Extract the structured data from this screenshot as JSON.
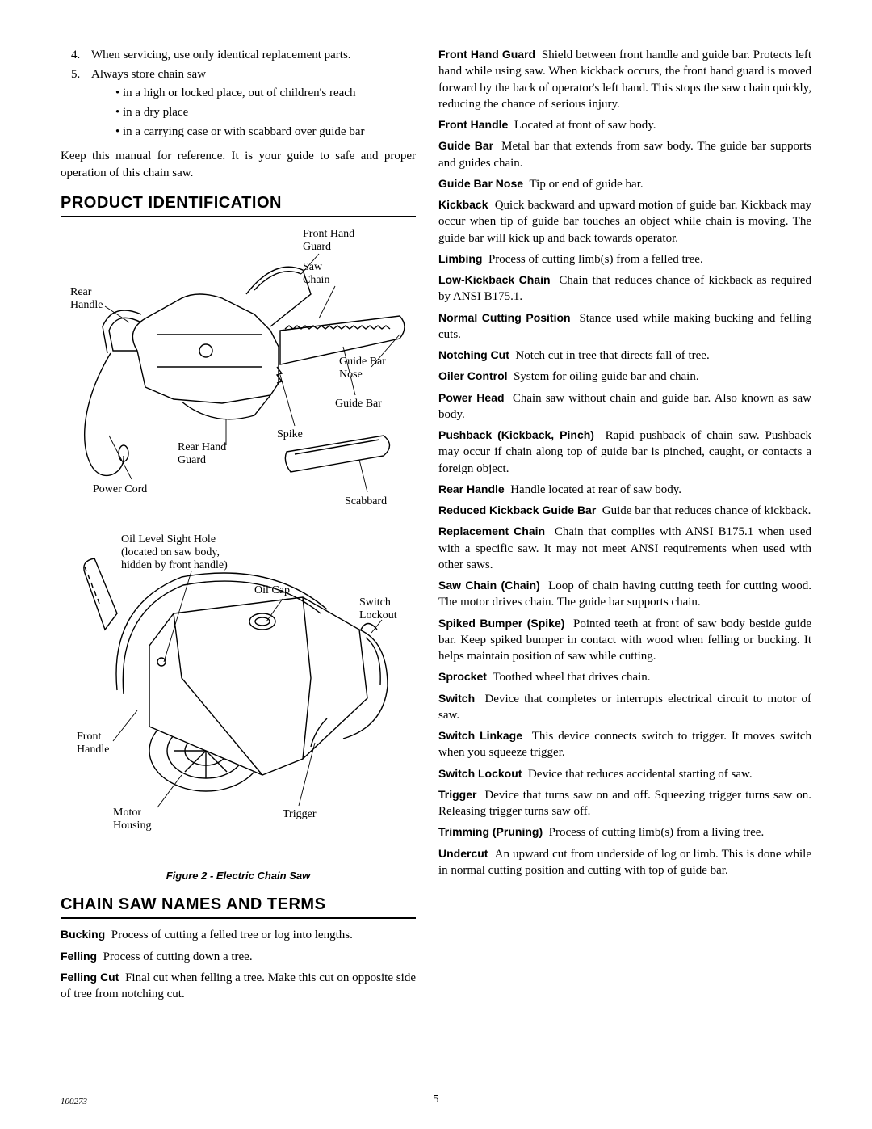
{
  "left": {
    "list4": "When servicing, use only identical replacement parts.",
    "list5": "Always store chain saw",
    "b1": "in a high or locked place, out of children's reach",
    "b2": "in a dry place",
    "b3": "in a carrying case or with scabbard over guide bar",
    "keep": "Keep this manual for reference. It is your guide to safe and proper operation of this chain saw.",
    "h_pi": "PRODUCT IDENTIFICATION",
    "fig_caption": "Figure 2 - Electric Chain Saw",
    "h_terms": "CHAIN SAW NAMES AND TERMS",
    "labels": {
      "rear_handle": "Rear\nHandle",
      "front_hand_guard": "Front Hand\nGuard",
      "saw_chain": "Saw\nChain",
      "guide_bar_nose": "Guide Bar\nNose",
      "guide_bar": "Guide Bar",
      "spike": "Spike",
      "rear_hand_guard": "Rear Hand\nGuard",
      "power_cord": "Power Cord",
      "scabbard": "Scabbard",
      "oil_sight": "Oil Level Sight Hole\n(located on saw body,\nhidden by front handle)",
      "oil_cap": "Oil Cap",
      "switch_lockout": "Switch\nLockout",
      "front_handle": "Front\nHandle",
      "motor_housing": "Motor\nHousing",
      "trigger": "Trigger"
    }
  },
  "terms": [
    {
      "t": "Bucking",
      "d": "Process of cutting a felled tree or log into lengths."
    },
    {
      "t": "Felling",
      "d": "Process of cutting down a tree."
    },
    {
      "t": "Felling Cut",
      "d": "Final cut when felling a tree. Make this cut on opposite side of tree from notching cut."
    },
    {
      "t": "Front Hand Guard",
      "d": "Shield between front handle and guide bar. Protects left hand while using saw. When kickback occurs, the front hand guard is moved forward by the back of operator's left hand. This stops the saw chain quickly, reducing the chance of serious injury."
    },
    {
      "t": "Front Handle",
      "d": "Located at front of saw body."
    },
    {
      "t": "Guide Bar",
      "d": "Metal bar that extends from saw body. The guide bar supports and guides chain."
    },
    {
      "t": "Guide Bar Nose",
      "d": "Tip or end of guide bar."
    },
    {
      "t": "Kickback",
      "d": "Quick backward and upward motion of guide bar. Kickback may occur when tip of guide bar touches an object while chain is moving. The guide bar will kick up and back towards operator."
    },
    {
      "t": "Limbing",
      "d": "Process of cutting limb(s) from a felled tree."
    },
    {
      "t": "Low-Kickback Chain",
      "d": "Chain that reduces chance of kickback as required by ANSI B175.1."
    },
    {
      "t": "Normal Cutting Position",
      "d": "Stance used while making bucking and felling cuts."
    },
    {
      "t": "Notching Cut",
      "d": "Notch cut in tree that directs fall of tree."
    },
    {
      "t": "Oiler Control",
      "d": "System for oiling guide bar and chain."
    },
    {
      "t": "Power Head",
      "d": "Chain saw without chain and guide bar. Also known as saw body."
    },
    {
      "t": "Pushback (Kickback, Pinch)",
      "d": "Rapid pushback of chain saw. Pushback may occur if chain along top of guide bar is pinched, caught, or contacts a foreign object."
    },
    {
      "t": "Rear Handle",
      "d": "Handle located at rear of saw body."
    },
    {
      "t": "Reduced Kickback Guide Bar",
      "d": "Guide bar that reduces chance of kickback."
    },
    {
      "t": "Replacement Chain",
      "d": "Chain that complies with ANSI B175.1 when used with a specific saw. It may not meet ANSI requirements when used with other saws."
    },
    {
      "t": "Saw Chain (Chain)",
      "d": "Loop of chain having cutting teeth for cutting wood. The motor drives chain. The guide bar supports chain."
    },
    {
      "t": "Spiked Bumper (Spike)",
      "d": "Pointed teeth at front of saw body beside guide bar. Keep spiked bumper in contact with wood when felling or bucking. It helps maintain position of saw while cutting."
    },
    {
      "t": "Sprocket",
      "d": "Toothed wheel that drives chain."
    },
    {
      "t": "Switch",
      "d": "Device that completes or interrupts electrical circuit to motor of saw."
    },
    {
      "t": "Switch Linkage",
      "d": "This device connects switch to trigger. It moves switch when you squeeze trigger."
    },
    {
      "t": "Switch Lockout",
      "d": "Device that reduces accidental starting of saw."
    },
    {
      "t": "Trigger",
      "d": "Device that turns saw on and off. Squeezing trigger turns saw on. Releasing trigger turns saw off."
    },
    {
      "t": "Trimming (Pruning)",
      "d": "Process of cutting limb(s) from a living tree."
    },
    {
      "t": "Undercut",
      "d": "An upward cut from underside of log or limb. This is done while in normal cutting position and cutting with top of guide bar."
    }
  ],
  "page": {
    "num": "5",
    "doc": "100273"
  }
}
